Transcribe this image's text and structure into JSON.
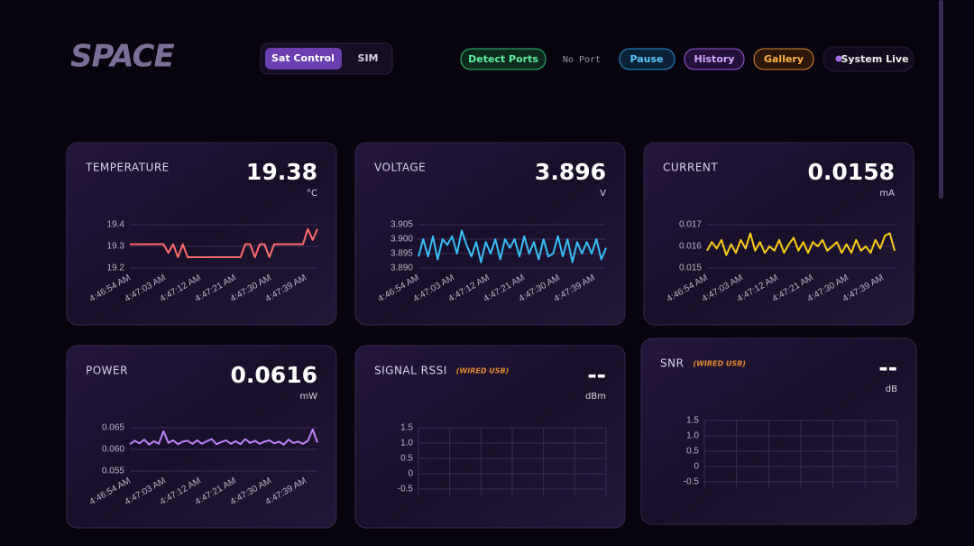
{
  "header": {
    "logo": "SPACE",
    "tabs": [
      "Sat Control",
      "SIM"
    ],
    "buttons": [
      "Detect Ports",
      "No Port",
      "Pause",
      "History",
      "Gallery",
      "System Live"
    ]
  },
  "chart_data": [
    {
      "type": "line",
      "title": "TEMPERATURE",
      "reading": "19.38",
      "unit": "°C",
      "color": "#ff6b6b",
      "xticks": [
        "4:46:54 AM",
        "4:47:03 AM",
        "4:47:12 AM",
        "4:47:21 AM",
        "4:47:30 AM",
        "4:47:39 AM"
      ],
      "ylim": [
        19.2,
        19.4
      ],
      "yticks": [
        19.2,
        19.3,
        19.4
      ],
      "values": [
        19.31,
        19.31,
        19.31,
        19.31,
        19.31,
        19.31,
        19.31,
        19.31,
        19.27,
        19.31,
        19.25,
        19.31,
        19.25,
        19.25,
        19.25,
        19.25,
        19.25,
        19.25,
        19.25,
        19.25,
        19.25,
        19.25,
        19.25,
        19.25,
        19.31,
        19.31,
        19.25,
        19.31,
        19.31,
        19.25,
        19.31,
        19.31,
        19.31,
        19.31,
        19.31,
        19.31,
        19.31,
        19.38,
        19.33,
        19.38
      ]
    },
    {
      "type": "line",
      "title": "VOLTAGE",
      "reading": "3.896",
      "unit": "V",
      "color": "#38bdf8",
      "xticks": [
        "4:46:54 AM",
        "4:47:03 AM",
        "4:47:12 AM",
        "4:47:21 AM",
        "4:47:30 AM",
        "4:47:39 AM"
      ],
      "ylim": [
        3.89,
        3.905
      ],
      "yticks": [
        {
          "value": 3.89,
          "label": "3.890"
        },
        3.895,
        {
          "value": 3.9,
          "label": "3.900"
        },
        3.905
      ],
      "values": [
        3.894,
        3.9,
        3.894,
        3.901,
        3.893,
        3.9,
        3.898,
        3.901,
        3.895,
        3.903,
        3.898,
        3.894,
        3.899,
        3.892,
        3.899,
        3.895,
        3.9,
        3.893,
        3.9,
        3.897,
        3.9,
        3.894,
        3.901,
        3.895,
        3.899,
        3.893,
        3.9,
        3.894,
        3.895,
        3.901,
        3.894,
        3.9,
        3.892,
        3.899,
        3.895,
        3.899,
        3.895,
        3.9,
        3.893,
        3.897
      ]
    },
    {
      "type": "line",
      "title": "CURRENT",
      "reading": "0.0158",
      "unit": "mA",
      "color": "#facc15",
      "xticks": [
        "4:46:54 AM",
        "4:47:03 AM",
        "4:47:12 AM",
        "4:47:21 AM",
        "4:47:30 AM",
        "4:47:39 AM"
      ],
      "ylim": [
        0.015,
        0.017
      ],
      "yticks": [
        0.015,
        0.016,
        0.017
      ],
      "values": [
        0.0158,
        0.0162,
        0.0159,
        0.0163,
        0.0156,
        0.0161,
        0.0157,
        0.0163,
        0.0159,
        0.0166,
        0.0158,
        0.0162,
        0.0157,
        0.016,
        0.0158,
        0.0163,
        0.0157,
        0.0161,
        0.0164,
        0.0158,
        0.0162,
        0.0157,
        0.0162,
        0.016,
        0.0163,
        0.0158,
        0.016,
        0.0162,
        0.0157,
        0.0161,
        0.0157,
        0.0163,
        0.0158,
        0.016,
        0.0157,
        0.0163,
        0.0159,
        0.0165,
        0.0166,
        0.0158
      ]
    },
    {
      "type": "line",
      "title": "POWER",
      "reading": "0.0616",
      "unit": "mW",
      "color": "#c084fc",
      "xticks": [
        "4:46:54 AM",
        "4:47:03 AM",
        "4:47:12 AM",
        "4:47:21 AM",
        "4:47:30 AM",
        "4:47:39 AM"
      ],
      "ylim": [
        0.055,
        0.065
      ],
      "yticks": [
        0.055,
        {
          "value": 0.06,
          "label": "0.060"
        },
        0.065
      ],
      "values": [
        0.0612,
        0.062,
        0.0614,
        0.0623,
        0.0611,
        0.0619,
        0.0613,
        0.0642,
        0.0615,
        0.0621,
        0.0612,
        0.0618,
        0.062,
        0.0613,
        0.0621,
        0.0613,
        0.0619,
        0.0624,
        0.0612,
        0.0617,
        0.0621,
        0.0613,
        0.0619,
        0.0612,
        0.0624,
        0.0615,
        0.062,
        0.0613,
        0.0618,
        0.0621,
        0.0614,
        0.0618,
        0.0611,
        0.0623,
        0.0615,
        0.0618,
        0.0613,
        0.062,
        0.0646,
        0.0616
      ]
    },
    {
      "type": "line",
      "title": "SIGNAL RSSI",
      "note": "(WIRED USB)",
      "reading": "--",
      "unit": "dBm",
      "color": "#a78bfa",
      "ylim": [
        -0.5,
        1.5
      ],
      "yticks": [
        -0.5,
        0,
        0.5,
        {
          "value": 1,
          "label": "1.0"
        },
        1.5
      ],
      "values": []
    },
    {
      "type": "line",
      "title": "SNR",
      "note": "(WIRED USB)",
      "reading": "--",
      "unit": "dB",
      "color": "#a78bfa",
      "ylim": [
        -0.5,
        1.5
      ],
      "yticks": [
        -0.5,
        0,
        0.5,
        {
          "value": 1,
          "label": "1.0"
        },
        1.5
      ],
      "values": []
    }
  ]
}
